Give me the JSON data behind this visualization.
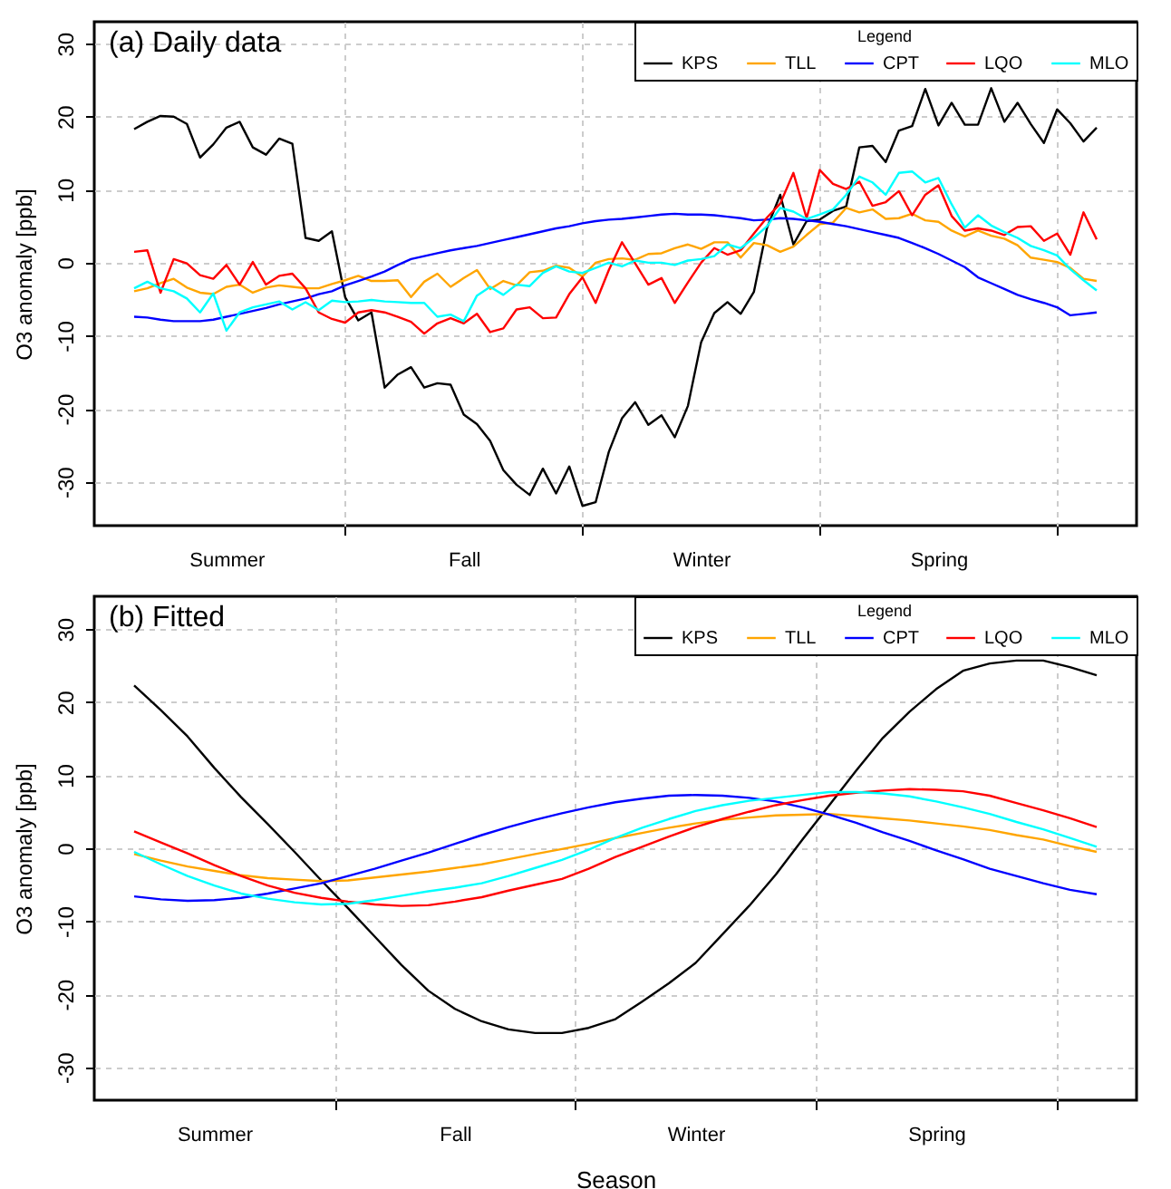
{
  "chart_data": [
    {
      "type": "line",
      "title": "(a) Daily data",
      "ylabel": "O3 anomaly [ppb]",
      "legend_title": "Legend",
      "legend": "top right",
      "grid": true,
      "categories": [
        null,
        null,
        null,
        null,
        null,
        null,
        null,
        "Summer",
        null,
        null,
        null,
        null,
        null,
        null,
        null,
        null,
        null,
        null,
        null,
        null,
        null,
        null,
        null,
        null,
        null,
        "Fall",
        null,
        null,
        null,
        null,
        null,
        null,
        null,
        null,
        null,
        null,
        null,
        null,
        null,
        null,
        null,
        null,
        null,
        "Winter",
        null,
        null,
        null,
        null,
        null,
        null,
        null,
        null,
        null,
        null,
        null,
        null,
        null,
        null,
        null,
        null,
        null,
        "Spring",
        null,
        null,
        null,
        null,
        null,
        null,
        null,
        null,
        null,
        null,
        null,
        null
      ],
      "ylim": [
        -36,
        33
      ],
      "yticks": [
        -30,
        -20,
        -10,
        0,
        10,
        20,
        30
      ],
      "series": [
        {
          "name": "KPS",
          "color": "#000000",
          "values": [
            18.3,
            19.3,
            20.1,
            20.0,
            19.0,
            14.4,
            16.2,
            18.5,
            19.3,
            15.8,
            14.8,
            17.0,
            16.3,
            3.4,
            3.0,
            4.3,
            -4.7,
            -7.9,
            -6.8,
            -17.1,
            -15.3,
            -14.3,
            -17.1,
            -16.5,
            -16.7,
            -20.8,
            -22.1,
            -24.4,
            -28.4,
            -30.4,
            -31.8,
            -28.2,
            -31.6,
            -27.9,
            -33.3,
            -32.8,
            -25.9,
            -21.3,
            -19.1,
            -22.2,
            -20.9,
            -23.9,
            -19.6,
            -10.9,
            -6.9,
            -5.4,
            -7.0,
            -4.0,
            4.8,
            9.3,
            2.5,
            5.7,
            5.9,
            7.1,
            7.7,
            15.8,
            16.0,
            13.8,
            18.1,
            18.7,
            23.8,
            18.8,
            21.9,
            18.9,
            18.9,
            23.9,
            19.3,
            21.9,
            19.0,
            16.4,
            21.0,
            19.1,
            16.6,
            18.5
          ]
        },
        {
          "name": "TLL",
          "color": "#ffa500",
          "values": [
            -3.9,
            -3.5,
            -2.8,
            -2.2,
            -3.4,
            -4.1,
            -4.3,
            -3.3,
            -3.0,
            -4.1,
            -3.4,
            -3.1,
            -3.3,
            -3.5,
            -3.5,
            -2.9,
            -2.4,
            -1.8,
            -2.5,
            -2.5,
            -2.4,
            -4.7,
            -2.6,
            -1.5,
            -3.3,
            -2.1,
            -1.0,
            -3.6,
            -2.5,
            -3.1,
            -1.3,
            -1.1,
            -0.4,
            -0.7,
            -1.9,
            0.0,
            0.5,
            0.6,
            0.4,
            1.2,
            1.3,
            2.0,
            2.5,
            1.9,
            2.8,
            2.8,
            0.7,
            2.7,
            2.4,
            1.5,
            2.2,
            3.8,
            5.3,
            5.5,
            7.5,
            6.9,
            7.3,
            6.0,
            6.1,
            6.7,
            5.8,
            5.6,
            4.4,
            3.6,
            4.4,
            3.7,
            3.3,
            2.4,
            0.7,
            0.4,
            0.1,
            -0.7,
            -2.2,
            -2.5
          ]
        },
        {
          "name": "CPT",
          "color": "#0000ff",
          "values": [
            -7.4,
            -7.5,
            -7.8,
            -8.0,
            -8.0,
            -8.0,
            -7.8,
            -7.4,
            -7.0,
            -6.6,
            -6.2,
            -5.7,
            -5.3,
            -4.9,
            -4.3,
            -3.9,
            -3.1,
            -2.5,
            -1.9,
            -1.2,
            -0.3,
            0.5,
            0.9,
            1.3,
            1.7,
            2.0,
            2.3,
            2.7,
            3.1,
            3.5,
            3.9,
            4.3,
            4.7,
            5.0,
            5.4,
            5.7,
            5.9,
            6.0,
            6.2,
            6.4,
            6.6,
            6.7,
            6.6,
            6.6,
            6.5,
            6.3,
            6.1,
            5.8,
            5.9,
            6.1,
            6.0,
            5.8,
            5.6,
            5.3,
            5.0,
            4.6,
            4.2,
            3.8,
            3.4,
            2.7,
            2.0,
            1.2,
            0.3,
            -0.6,
            -2.0,
            -2.8,
            -3.6,
            -4.4,
            -5.0,
            -5.5,
            -6.1,
            -7.2,
            -7.0,
            -6.8
          ]
        },
        {
          "name": "LQO",
          "color": "#ff0000",
          "values": [
            1.5,
            1.7,
            -4.1,
            0.5,
            -0.1,
            -1.7,
            -2.2,
            -0.3,
            -3.0,
            0.1,
            -3.0,
            -1.8,
            -1.5,
            -3.5,
            -6.8,
            -7.7,
            -8.2,
            -6.8,
            -6.5,
            -6.8,
            -7.4,
            -8.1,
            -9.7,
            -8.3,
            -7.6,
            -8.3,
            -7.0,
            -9.5,
            -9.0,
            -6.4,
            -6.1,
            -7.6,
            -7.5,
            -4.3,
            -2.0,
            -5.5,
            -1.0,
            2.8,
            -0.1,
            -3.0,
            -2.1,
            -5.5,
            -2.7,
            0.0,
            2.0,
            1.1,
            1.7,
            4.0,
            6.2,
            8.1,
            12.3,
            6.1,
            12.7,
            10.8,
            10.1,
            11.1,
            7.8,
            8.3,
            9.8,
            6.5,
            9.3,
            10.6,
            6.4,
            4.4,
            4.7,
            4.4,
            3.8,
            4.9,
            5.0,
            3.0,
            4.0,
            1.1,
            6.9,
            3.2
          ]
        },
        {
          "name": "MLO",
          "color": "#00ffff",
          "values": [
            -3.5,
            -2.6,
            -3.5,
            -3.9,
            -4.9,
            -6.8,
            -4.2,
            -9.3,
            -6.8,
            -6.1,
            -5.7,
            -5.3,
            -6.4,
            -5.4,
            -6.5,
            -5.2,
            -5.4,
            -5.3,
            -5.1,
            -5.3,
            -5.4,
            -5.5,
            -5.5,
            -7.4,
            -7.1,
            -8.0,
            -4.5,
            -3.3,
            -4.4,
            -3.0,
            -3.2,
            -1.4,
            -0.5,
            -1.2,
            -1.4,
            -0.7,
            0.0,
            -0.5,
            0.3,
            0.0,
            0.0,
            -0.3,
            0.3,
            0.5,
            0.9,
            2.5,
            2.0,
            3.4,
            5.0,
            7.5,
            7.0,
            6.0,
            6.6,
            7.3,
            9.3,
            11.8,
            11.0,
            9.3,
            12.3,
            12.5,
            11.0,
            11.6,
            8.0,
            4.8,
            6.5,
            5.1,
            4.2,
            3.4,
            2.3,
            1.7,
            1.0,
            -0.9,
            -2.4,
            -3.8
          ]
        }
      ]
    },
    {
      "type": "line",
      "title": "(b) Fitted",
      "xlabel": "Season",
      "ylabel": "O3 anomaly [ppb]",
      "legend_title": "Legend",
      "legend": "top right",
      "grid": true,
      "categories": [
        null,
        null,
        null,
        "Summer",
        null,
        null,
        null,
        null,
        null,
        null,
        null,
        null,
        "Fall",
        null,
        null,
        null,
        null,
        null,
        null,
        null,
        null,
        "Winter",
        null,
        null,
        null,
        null,
        null,
        null,
        null,
        null,
        "Spring",
        null,
        null,
        null,
        null,
        null,
        null
      ],
      "ylim": [
        -34.5,
        34.5
      ],
      "yticks": [
        -30,
        -20,
        -10,
        0,
        10,
        20,
        30
      ],
      "series": [
        {
          "name": "KPS",
          "color": "#000000",
          "values": [
            22.3,
            18.9,
            15.3,
            11.0,
            7.0,
            3.3,
            -0.5,
            -4.4,
            -8.2,
            -12.1,
            -16.0,
            -19.5,
            -22.0,
            -23.7,
            -24.8,
            -25.3,
            -25.3,
            -24.6,
            -23.4,
            -21.0,
            -18.5,
            -15.7,
            -11.8,
            -7.9,
            -3.6,
            1.2,
            5.9,
            10.6,
            15.1,
            18.7,
            21.8,
            24.3,
            25.3,
            25.7,
            25.7,
            24.8,
            23.7
          ]
        },
        {
          "name": "TLL",
          "color": "#ffa500",
          "values": [
            -0.8,
            -1.7,
            -2.5,
            -3.1,
            -3.7,
            -4.1,
            -4.3,
            -4.5,
            -4.4,
            -4.0,
            -3.6,
            -3.2,
            -2.7,
            -2.2,
            -1.5,
            -0.8,
            -0.1,
            0.6,
            1.4,
            2.1,
            2.8,
            3.4,
            3.9,
            4.2,
            4.5,
            4.6,
            4.7,
            4.4,
            4.1,
            3.8,
            3.4,
            3.0,
            2.5,
            1.8,
            1.2,
            0.3,
            -0.5
          ]
        },
        {
          "name": "CPT",
          "color": "#0000ff",
          "values": [
            -6.6,
            -7.0,
            -7.2,
            -7.1,
            -6.8,
            -6.2,
            -5.5,
            -4.8,
            -3.8,
            -2.8,
            -1.7,
            -0.6,
            0.6,
            1.8,
            2.9,
            3.9,
            4.8,
            5.6,
            6.3,
            6.8,
            7.2,
            7.3,
            7.2,
            6.9,
            6.4,
            5.6,
            4.6,
            3.5,
            2.2,
            1.0,
            -0.3,
            -1.5,
            -2.8,
            -3.8,
            -4.8,
            -5.7,
            -6.3
          ]
        },
        {
          "name": "LQO",
          "color": "#ff0000",
          "values": [
            2.3,
            0.8,
            -0.7,
            -2.3,
            -3.8,
            -5.1,
            -6.1,
            -6.8,
            -7.3,
            -7.7,
            -7.9,
            -7.8,
            -7.3,
            -6.7,
            -5.8,
            -5.0,
            -4.2,
            -2.8,
            -1.2,
            0.2,
            1.6,
            2.9,
            4.0,
            5.0,
            5.9,
            6.6,
            7.2,
            7.6,
            7.9,
            8.1,
            8.0,
            7.8,
            7.2,
            6.2,
            5.2,
            4.1,
            2.9
          ]
        },
        {
          "name": "MLO",
          "color": "#00ffff",
          "values": [
            -0.5,
            -2.2,
            -3.8,
            -5.1,
            -6.2,
            -6.9,
            -7.4,
            -7.7,
            -7.6,
            -7.1,
            -6.5,
            -5.9,
            -5.4,
            -4.8,
            -3.8,
            -2.7,
            -1.6,
            -0.2,
            1.4,
            2.8,
            4.0,
            5.1,
            5.9,
            6.5,
            6.9,
            7.3,
            7.7,
            7.7,
            7.5,
            7.1,
            6.4,
            5.6,
            4.7,
            3.6,
            2.6,
            1.4,
            0.2
          ]
        }
      ]
    }
  ]
}
